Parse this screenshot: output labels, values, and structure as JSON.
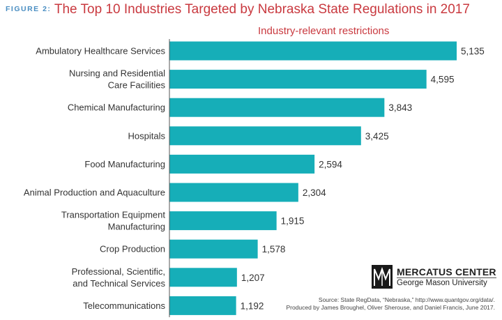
{
  "header": {
    "figure_label": "FIGURE 2:",
    "title": "The Top 10 Industries Targeted by Nebraska State Regulations in 2017"
  },
  "chart_data": {
    "type": "bar",
    "orientation": "horizontal",
    "subtitle": "Industry-relevant restrictions",
    "categories": [
      [
        "Ambulatory Healthcare Services"
      ],
      [
        "Nursing and Residential",
        "Care Facilities"
      ],
      [
        "Chemical Manufacturing"
      ],
      [
        "Hospitals"
      ],
      [
        "Food Manufacturing"
      ],
      [
        "Animal Production and Aquaculture"
      ],
      [
        "Transportation Equipment",
        "Manufacturing"
      ],
      [
        "Crop Production"
      ],
      [
        "Professional, Scientific,",
        "and Technical Services"
      ],
      [
        "Telecommunications"
      ]
    ],
    "values": [
      5135,
      4595,
      3843,
      3425,
      2594,
      2304,
      1915,
      1578,
      1207,
      1192
    ],
    "value_labels": [
      "5,135",
      "4,595",
      "3,843",
      "3,425",
      "2,594",
      "2,304",
      "1,915",
      "1,578",
      "1,207",
      "1,192"
    ],
    "bar_color": "#16aeb8",
    "xlim": [
      0,
      5135
    ],
    "grid": false,
    "legend": "none"
  },
  "branding": {
    "name": "MERCATUS CENTER",
    "org": "George Mason University"
  },
  "source": {
    "line1": "Source: State RegData, “Nebraska,” http://www.quantgov.org/data/.",
    "line2": "Produced by James Broughel, Oliver Sherouse, and Daniel Francis, June 2017."
  }
}
